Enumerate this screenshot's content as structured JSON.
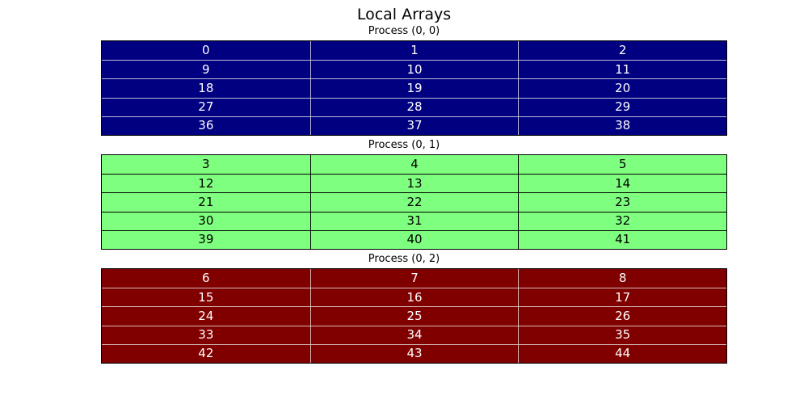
{
  "chart_data": {
    "type": "table",
    "title": "Local Arrays",
    "tables": [
      {
        "title": "Process (0, 0)",
        "bg_color": "#000080",
        "text_color": "#ffffff",
        "line_color": "#bbbbd6",
        "rows": [
          [
            0,
            1,
            2
          ],
          [
            9,
            10,
            11
          ],
          [
            18,
            19,
            20
          ],
          [
            27,
            28,
            29
          ],
          [
            36,
            37,
            38
          ]
        ]
      },
      {
        "title": "Process (0, 1)",
        "bg_color": "#7fff7f",
        "text_color": "#000000",
        "line_color": "#000000",
        "rows": [
          [
            3,
            4,
            5
          ],
          [
            12,
            13,
            14
          ],
          [
            21,
            22,
            23
          ],
          [
            30,
            31,
            32
          ],
          [
            39,
            40,
            41
          ]
        ]
      },
      {
        "title": "Process (0, 2)",
        "bg_color": "#800000",
        "text_color": "#ffffff",
        "line_color": "#d6bbbb",
        "rows": [
          [
            6,
            7,
            8
          ],
          [
            15,
            16,
            17
          ],
          [
            24,
            25,
            26
          ],
          [
            33,
            34,
            35
          ],
          [
            42,
            43,
            44
          ]
        ]
      }
    ]
  }
}
